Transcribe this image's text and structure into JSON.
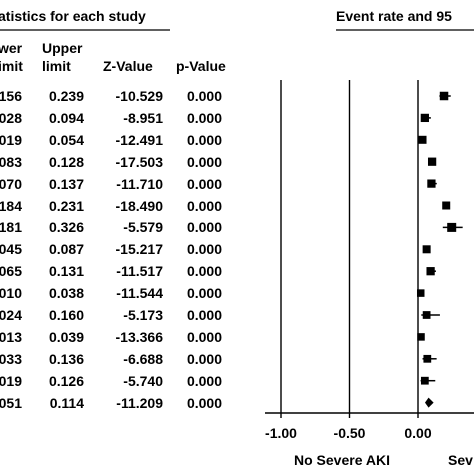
{
  "header": {
    "left_title": "atistics for each study",
    "right_title": "Event rate and 95",
    "col_lower_1": "wer",
    "col_lower_2": "imit",
    "col_upper_1": "Upper",
    "col_upper_2": "limit",
    "col_z": "Z-Value",
    "col_p": "p-Value"
  },
  "rows": [
    {
      "lower": "156",
      "upper": "0.239",
      "z": "-10.529",
      "p": "0.000"
    },
    {
      "lower": "028",
      "upper": "0.094",
      "z": "-8.951",
      "p": "0.000"
    },
    {
      "lower": "019",
      "upper": "0.054",
      "z": "-12.491",
      "p": "0.000"
    },
    {
      "lower": "083",
      "upper": "0.128",
      "z": "-17.503",
      "p": "0.000"
    },
    {
      "lower": "070",
      "upper": "0.137",
      "z": "-11.710",
      "p": "0.000"
    },
    {
      "lower": "184",
      "upper": "0.231",
      "z": "-18.490",
      "p": "0.000"
    },
    {
      "lower": "181",
      "upper": "0.326",
      "z": "-5.579",
      "p": "0.000"
    },
    {
      "lower": "045",
      "upper": "0.087",
      "z": "-15.217",
      "p": "0.000"
    },
    {
      "lower": "065",
      "upper": "0.131",
      "z": "-11.517",
      "p": "0.000"
    },
    {
      "lower": "010",
      "upper": "0.038",
      "z": "-11.544",
      "p": "0.000"
    },
    {
      "lower": "024",
      "upper": "0.160",
      "z": "-5.173",
      "p": "0.000"
    },
    {
      "lower": "013",
      "upper": "0.039",
      "z": "-13.366",
      "p": "0.000"
    },
    {
      "lower": "033",
      "upper": "0.136",
      "z": "-6.688",
      "p": "0.000"
    },
    {
      "lower": "019",
      "upper": "0.126",
      "z": "-5.740",
      "p": "0.000"
    },
    {
      "lower": "051",
      "upper": "0.114",
      "z": "-11.209",
      "p": "0.000"
    }
  ],
  "footer": {
    "left_label": "No Severe AKI",
    "right_label": "Sev"
  },
  "chart_data": {
    "type": "scatter",
    "xlim": [
      -1.0,
      0.0
    ],
    "ticks": [
      {
        "value": -1.0,
        "label": "-1.00"
      },
      {
        "value": -0.5,
        "label": "-0.50"
      },
      {
        "value": 0.0,
        "label": "0.00"
      }
    ],
    "reference_lines": [
      -1.0,
      -0.5,
      0.0
    ],
    "points": [
      {
        "estimate": 0.19,
        "lower": 0.156,
        "upper": 0.239,
        "size": 0.9
      },
      {
        "estimate": 0.05,
        "lower": 0.028,
        "upper": 0.094,
        "size": 0.85
      },
      {
        "estimate": 0.033,
        "lower": 0.019,
        "upper": 0.054,
        "size": 0.8
      },
      {
        "estimate": 0.103,
        "lower": 0.083,
        "upper": 0.128,
        "size": 0.85
      },
      {
        "estimate": 0.098,
        "lower": 0.07,
        "upper": 0.137,
        "size": 0.85
      },
      {
        "estimate": 0.206,
        "lower": 0.184,
        "upper": 0.231,
        "size": 0.8
      },
      {
        "estimate": 0.246,
        "lower": 0.181,
        "upper": 0.326,
        "size": 1.0
      },
      {
        "estimate": 0.063,
        "lower": 0.045,
        "upper": 0.087,
        "size": 0.8
      },
      {
        "estimate": 0.092,
        "lower": 0.065,
        "upper": 0.131,
        "size": 0.85
      },
      {
        "estimate": 0.02,
        "lower": 0.01,
        "upper": 0.038,
        "size": 0.7
      },
      {
        "estimate": 0.063,
        "lower": 0.024,
        "upper": 0.16,
        "size": 0.75
      },
      {
        "estimate": 0.022,
        "lower": 0.013,
        "upper": 0.039,
        "size": 0.7
      },
      {
        "estimate": 0.068,
        "lower": 0.033,
        "upper": 0.136,
        "size": 0.75
      },
      {
        "estimate": 0.05,
        "lower": 0.019,
        "upper": 0.126,
        "size": 0.75
      },
      {
        "estimate": 0.077,
        "lower": 0.051,
        "upper": 0.114,
        "size": 0.0,
        "summary": true
      }
    ]
  }
}
